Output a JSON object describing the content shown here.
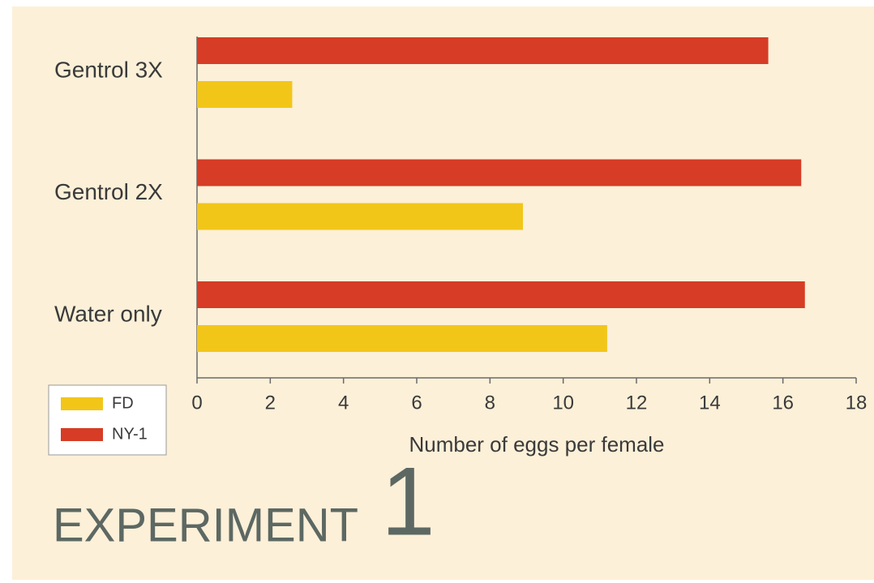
{
  "chart_data": {
    "type": "hbar",
    "title": "EXPERIMENT",
    "annotations": [
      "1"
    ],
    "x_label": "Number of eggs per female",
    "categories": [
      "Gentrol 3X",
      "Gentrol 2X",
      "Water only"
    ],
    "series": [
      {
        "name": "FD",
        "color": "#f2c619",
        "values": [
          2.6,
          8.9,
          11.2
        ]
      },
      {
        "name": "NY-1",
        "color": "#d63c26",
        "values": [
          15.6,
          16.5,
          16.6
        ]
      }
    ],
    "xlim": [
      0,
      18
    ],
    "xticks": [
      0,
      2,
      4,
      6,
      8,
      10,
      12,
      14,
      16,
      18
    ]
  }
}
